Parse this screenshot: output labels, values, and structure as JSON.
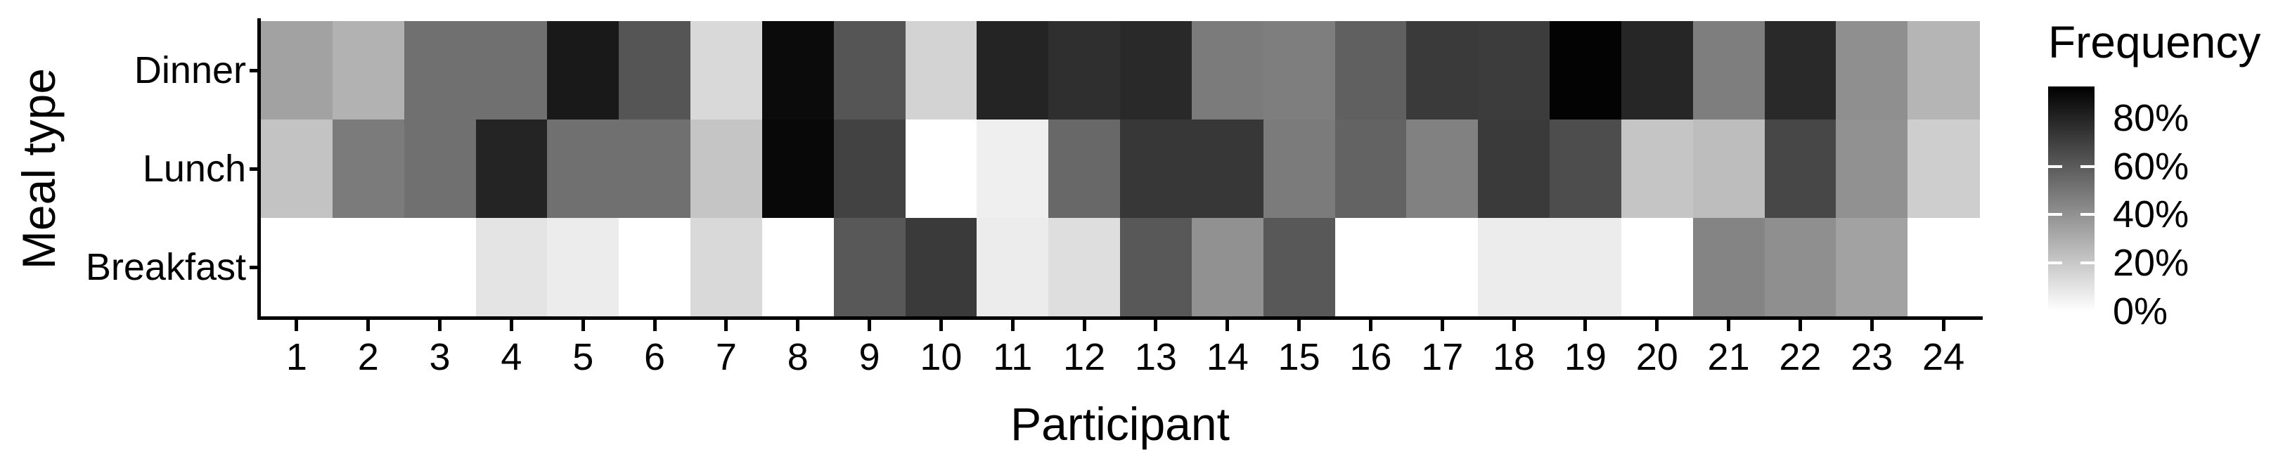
{
  "chart_data": {
    "type": "heatmap",
    "xlabel": "Participant",
    "ylabel": "Meal type",
    "x_categories": [
      "1",
      "2",
      "3",
      "4",
      "5",
      "6",
      "7",
      "8",
      "9",
      "10",
      "11",
      "12",
      "13",
      "14",
      "15",
      "16",
      "17",
      "18",
      "19",
      "20",
      "21",
      "22",
      "23",
      "24"
    ],
    "y_categories_top_to_bottom": [
      "Dinner",
      "Lunch",
      "Breakfast"
    ],
    "series": [
      {
        "name": "Dinner",
        "values_percent": [
          34,
          28,
          52,
          52,
          84,
          62,
          14,
          89,
          62,
          16,
          80,
          76,
          78,
          48,
          47,
          58,
          72,
          71,
          92,
          79,
          47,
          78,
          41,
          27
        ]
      },
      {
        "name": "Lunch",
        "values_percent": [
          22,
          48,
          52,
          80,
          52,
          52,
          21,
          90,
          69,
          0,
          6,
          55,
          73,
          73,
          48,
          57,
          46,
          72,
          65,
          21,
          24,
          67,
          40,
          18
        ]
      },
      {
        "name": "Breakfast",
        "values_percent": [
          0,
          0,
          0,
          10,
          7,
          0,
          14,
          0,
          61,
          72,
          7,
          12,
          61,
          40,
          61,
          0,
          0,
          7,
          7,
          0,
          45,
          41,
          34,
          0
        ]
      }
    ],
    "legend": {
      "title": "Frequency",
      "position": "right",
      "tick_labels": [
        "80%",
        "60%",
        "40%",
        "20%",
        "0%"
      ],
      "tick_values_percent": [
        80,
        60,
        40,
        20,
        0
      ],
      "tick_marks_visible_percent": [
        60,
        40,
        20
      ]
    },
    "scale": {
      "type": "gradient",
      "low_color": "#ffffff",
      "high_color": "#000000",
      "min_percent": 0,
      "max_percent": 93
    },
    "grid": false,
    "background": "#ffffff"
  }
}
